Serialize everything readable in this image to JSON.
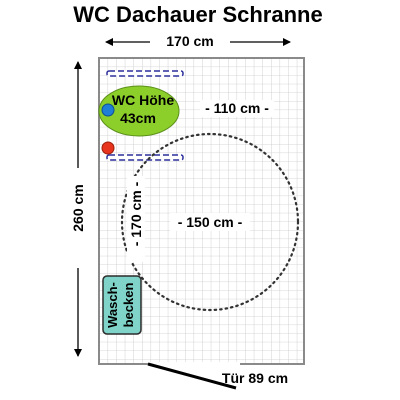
{
  "title": "WC Dachauer Schranne",
  "dimensions": {
    "width": "170 cm",
    "height": "260 cm",
    "inner_width": "- 110 cm -",
    "inner_depth": "- 170 cm -",
    "turning_circle": "- 150 cm -",
    "door": "Tür 89 cm"
  },
  "wc": {
    "line1": "WC Höhe",
    "line2": "43cm"
  },
  "sink": {
    "line1": "Wasch-",
    "line2": "becken"
  },
  "colors": {
    "wc_fill": "#8ccf2a",
    "sink_fill": "#7fd3c8",
    "grab_bar": "#2b2f9a",
    "flush_button": "#1f7ed6",
    "alarm_button": "#e8341c",
    "tile": "#c7c7c7",
    "wall": "#8a8a8a"
  }
}
